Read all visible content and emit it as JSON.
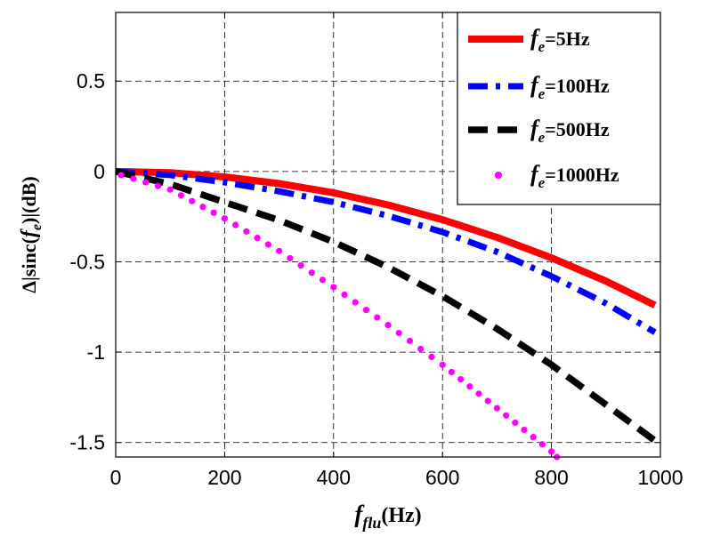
{
  "chart_data": {
    "type": "line",
    "title": "",
    "xlabel": {
      "main": "f",
      "sub": "flu",
      "unit": "(Hz)"
    },
    "ylabel": {
      "pre": "Δ|sinc(",
      "main": "f",
      "sub": "e",
      "post": ")|(dB)"
    },
    "xlim": [
      0,
      1000
    ],
    "ylim": [
      -1.58,
      0.88
    ],
    "xticks": [
      0,
      200,
      400,
      600,
      800,
      1000
    ],
    "xtick_labels": [
      "0",
      "200",
      "400",
      "600",
      "800",
      "1000"
    ],
    "yticks": [
      0.5,
      0,
      -0.5,
      -1,
      -1.5
    ],
    "ytick_labels": [
      "0.5",
      "0",
      "-0.5",
      "-1",
      "-1.5"
    ],
    "grid": true,
    "legend_position": "top-right",
    "series": [
      {
        "name": "fe=5Hz",
        "label_main": "f",
        "label_sub": "e",
        "label_rest": "=5Hz",
        "color": "#ff0000",
        "style": "solid",
        "x": [
          0,
          100,
          200,
          300,
          400,
          500,
          600,
          700,
          800,
          900,
          990
        ],
        "y": [
          0,
          -0.007,
          -0.03,
          -0.067,
          -0.118,
          -0.185,
          -0.267,
          -0.365,
          -0.478,
          -0.607,
          -0.74
        ]
      },
      {
        "name": "fe=100Hz",
        "label_main": "f",
        "label_sub": "e",
        "label_rest": "=100Hz",
        "color": "#0000ff",
        "style": "dashdot",
        "x": [
          0,
          100,
          200,
          300,
          400,
          500,
          600,
          700,
          800,
          900,
          990
        ],
        "y": [
          0,
          -0.02,
          -0.06,
          -0.11,
          -0.17,
          -0.245,
          -0.335,
          -0.445,
          -0.58,
          -0.73,
          -0.89
        ]
      },
      {
        "name": "fe=500Hz",
        "label_main": "f",
        "label_sub": "e",
        "label_rest": "=500Hz",
        "color": "#000000",
        "style": "dashed",
        "x": [
          0,
          100,
          200,
          300,
          400,
          500,
          600,
          700,
          800,
          900,
          990
        ],
        "y": [
          0,
          -0.07,
          -0.17,
          -0.27,
          -0.39,
          -0.53,
          -0.69,
          -0.87,
          -1.07,
          -1.29,
          -1.49
        ]
      },
      {
        "name": "fe=1000Hz",
        "label_main": "f",
        "label_sub": "e",
        "label_rest": "=1000Hz",
        "color": "#ff00ff",
        "style": "dotted",
        "x": [
          10,
          100,
          200,
          300,
          400,
          500,
          600,
          700,
          800,
          810
        ],
        "y": [
          -0.02,
          -0.1,
          -0.26,
          -0.44,
          -0.64,
          -0.85,
          -1.07,
          -1.31,
          -1.55,
          -1.58
        ]
      }
    ]
  }
}
